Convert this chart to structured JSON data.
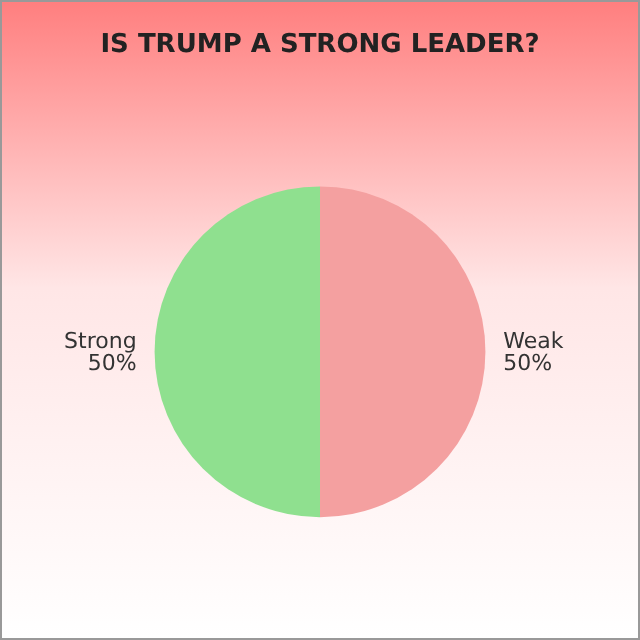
{
  "chart_data": {
    "type": "pie",
    "title": "IS TRUMP A STRONG LEADER?",
    "categories": [
      "Weak",
      "Strong"
    ],
    "values": [
      50,
      50
    ],
    "colors": [
      "#f4a0a0",
      "#8fe08f"
    ],
    "value_labels": [
      "50%",
      "50%"
    ],
    "legend": false
  }
}
